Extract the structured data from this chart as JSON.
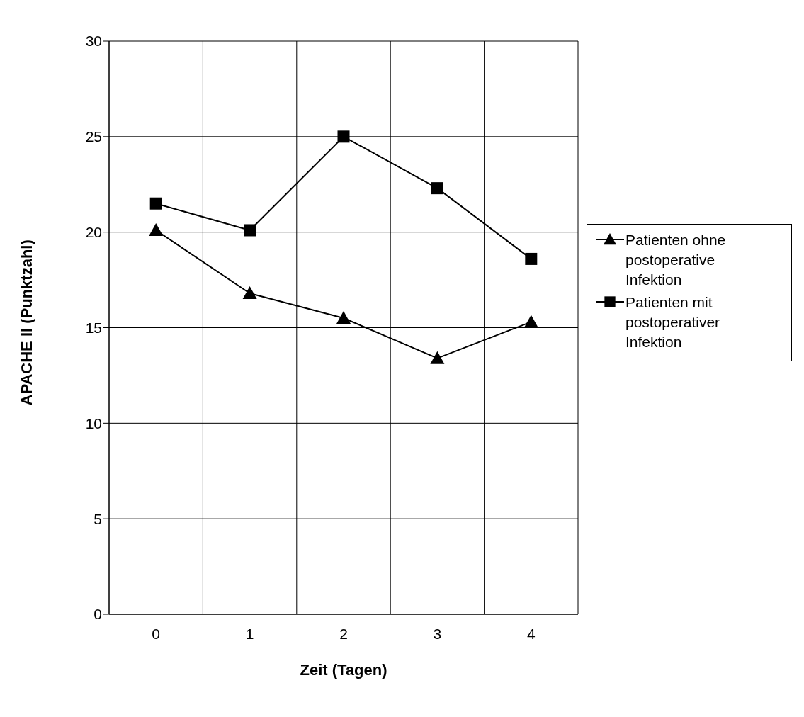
{
  "chart_data": {
    "type": "line",
    "xlabel": "Zeit (Tagen)",
    "ylabel": "APACHE II (Punktzahl)",
    "categories": [
      "0",
      "1",
      "2",
      "3",
      "4"
    ],
    "series": [
      {
        "name": "Patienten ohne postoperative Infektion",
        "color": "#000000",
        "marker": "triangle",
        "values": [
          20.1,
          16.8,
          15.5,
          13.4,
          15.3
        ]
      },
      {
        "name": "Patienten mit postoperativer Infektion",
        "color": "#000000",
        "marker": "square",
        "values": [
          21.5,
          20.1,
          25.0,
          22.3,
          18.6
        ]
      }
    ],
    "ylim": [
      0,
      30
    ],
    "yticks": [
      0,
      5,
      10,
      15,
      20,
      25,
      30
    ],
    "grid": true,
    "legend": "right",
    "line_style": "solid"
  }
}
